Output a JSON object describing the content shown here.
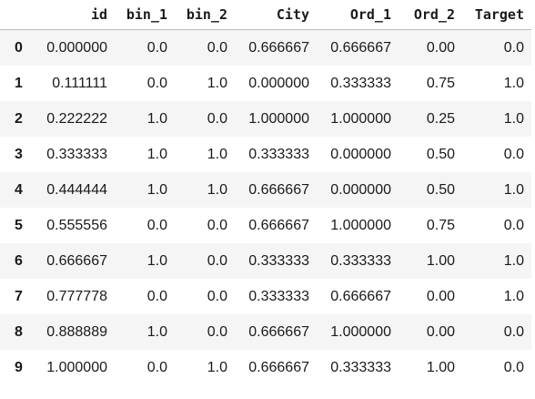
{
  "table": {
    "columns": [
      "id",
      "bin_1",
      "bin_2",
      "City",
      "Ord_1",
      "Ord_2",
      "Target"
    ],
    "rows": [
      {
        "index": "0",
        "cells": [
          "0.000000",
          "0.0",
          "0.0",
          "0.666667",
          "0.666667",
          "0.00",
          "0.0"
        ]
      },
      {
        "index": "1",
        "cells": [
          "0.111111",
          "0.0",
          "1.0",
          "0.000000",
          "0.333333",
          "0.75",
          "1.0"
        ]
      },
      {
        "index": "2",
        "cells": [
          "0.222222",
          "1.0",
          "0.0",
          "1.000000",
          "1.000000",
          "0.25",
          "1.0"
        ]
      },
      {
        "index": "3",
        "cells": [
          "0.333333",
          "1.0",
          "1.0",
          "0.333333",
          "0.000000",
          "0.50",
          "0.0"
        ]
      },
      {
        "index": "4",
        "cells": [
          "0.444444",
          "1.0",
          "1.0",
          "0.666667",
          "0.000000",
          "0.50",
          "1.0"
        ]
      },
      {
        "index": "5",
        "cells": [
          "0.555556",
          "0.0",
          "0.0",
          "0.666667",
          "1.000000",
          "0.75",
          "0.0"
        ]
      },
      {
        "index": "6",
        "cells": [
          "0.666667",
          "1.0",
          "0.0",
          "0.333333",
          "0.333333",
          "1.00",
          "1.0"
        ]
      },
      {
        "index": "7",
        "cells": [
          "0.777778",
          "0.0",
          "0.0",
          "0.333333",
          "0.666667",
          "0.00",
          "1.0"
        ]
      },
      {
        "index": "8",
        "cells": [
          "0.888889",
          "1.0",
          "0.0",
          "0.666667",
          "1.000000",
          "0.00",
          "0.0"
        ]
      },
      {
        "index": "9",
        "cells": [
          "1.000000",
          "0.0",
          "1.0",
          "0.666667",
          "0.333333",
          "1.00",
          "0.0"
        ]
      }
    ]
  }
}
